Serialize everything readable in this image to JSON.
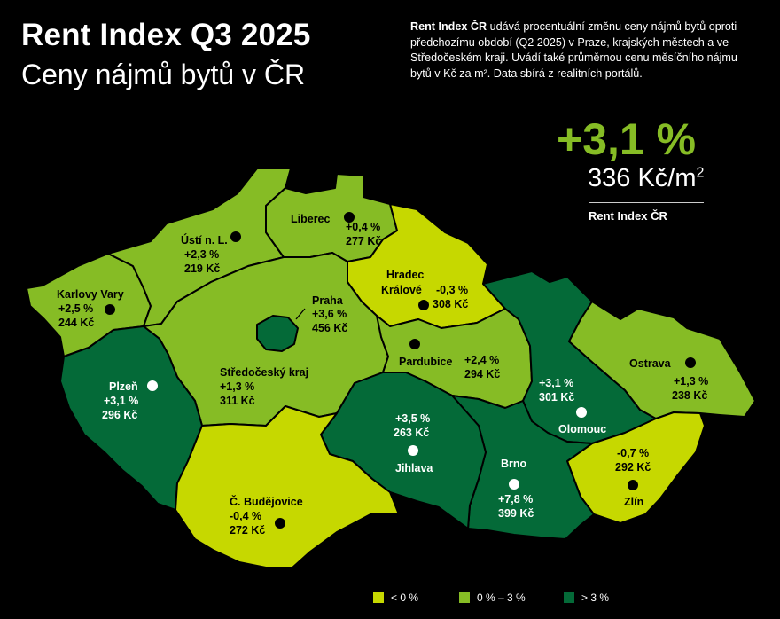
{
  "header": {
    "title": "Rent Index Q3 2025",
    "subtitle": "Ceny nájmů bytů v ČR",
    "desc_brand": "Rent Index ČR",
    "desc_text": " udává procentuální změnu ceny nájmů bytů oproti předchozímu období (Q2 2025) v Praze, krajských městech a ve Středočeském kraji. Uvádí také průměrnou cenu měsíčního nájmu bytů v Kč za m². Data sbírá z realitních portálů."
  },
  "national": {
    "change": "+3,1 %",
    "price": "336 Kč/m",
    "price_sup": "2",
    "label": "Rent Index ČR"
  },
  "colors": {
    "below_zero": "#c6d800",
    "zero_to_three": "#86bc25",
    "above_three": "#046a38",
    "text_dark": "#000000",
    "text_light": "#ffffff"
  },
  "regions": [
    {
      "id": "karlovy-vary",
      "name": "Karlovy Vary",
      "change": "+2,5 %",
      "price": "244 Kč",
      "category": "zero_to_three"
    },
    {
      "id": "usti",
      "name": "Ústí n. L.",
      "change": "+2,3 %",
      "price": "219 Kč",
      "category": "zero_to_three"
    },
    {
      "id": "liberec",
      "name": "Liberec",
      "change": "+0,4 %",
      "price": "277 Kč",
      "category": "zero_to_three"
    },
    {
      "id": "hradec",
      "name": "Hradec Králové",
      "name_line1": "Hradec",
      "name_line2": "Králové",
      "change": "-0,3 %",
      "price": "308 Kč",
      "category": "below_zero"
    },
    {
      "id": "praha",
      "name": "Praha",
      "change": "+3,6 %",
      "price": "456 Kč",
      "category": "above_three"
    },
    {
      "id": "stredocesky",
      "name": "Středočeský kraj",
      "change": "+1,3 %",
      "price": "311 Kč",
      "category": "zero_to_three"
    },
    {
      "id": "plzen",
      "name": "Plzeň",
      "change": "+3,1 %",
      "price": "296 Kč",
      "category": "above_three"
    },
    {
      "id": "pardubice",
      "name": "Pardubice",
      "change": "+2,4 %",
      "price": "294 Kč",
      "category": "zero_to_three"
    },
    {
      "id": "olomouc",
      "name": "Olomouc",
      "change": "+3,1 %",
      "price": "301 Kč",
      "category": "above_three"
    },
    {
      "id": "ostrava",
      "name": "Ostrava",
      "change": "+1,3 %",
      "price": "238 Kč",
      "category": "zero_to_three"
    },
    {
      "id": "jihlava",
      "name": "Jihlava",
      "change": "+3,5 %",
      "price": "263 Kč",
      "category": "above_three"
    },
    {
      "id": "brno",
      "name": "Brno",
      "change": "+7,8 %",
      "price": "399 Kč",
      "category": "above_three"
    },
    {
      "id": "zlin",
      "name": "Zlín",
      "change": "-0,7 %",
      "price": "292 Kč",
      "category": "below_zero"
    },
    {
      "id": "budejovice",
      "name": "Č. Budějovice",
      "change": "-0,4 %",
      "price": "272 Kč",
      "category": "below_zero"
    }
  ],
  "legend": [
    {
      "label": "< 0 %",
      "category": "below_zero"
    },
    {
      "label": "0 % – 3 %",
      "category": "zero_to_three"
    },
    {
      "label": "> 3 %",
      "category": "above_three"
    }
  ]
}
